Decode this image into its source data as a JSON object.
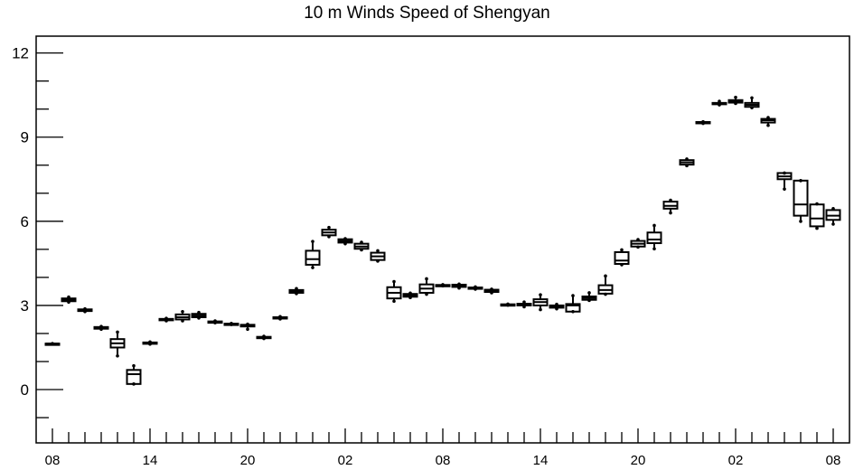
{
  "chart_data": {
    "type": "box",
    "title": "10 m Winds Speed of Shengyan",
    "xlabel": "",
    "ylabel": "",
    "ylim": [
      -1.9,
      12.6
    ],
    "y_ticks": [
      0,
      3,
      6,
      9,
      12
    ],
    "y_tick_labels": [
      "0",
      "3",
      "6",
      "9",
      "12"
    ],
    "x_ticks": [
      0,
      6,
      12,
      18,
      24,
      30,
      36,
      42,
      48
    ],
    "x_tick_labels": [
      "08",
      "14",
      "20",
      "02",
      "08",
      "14",
      "20",
      "02",
      "08"
    ],
    "xlim": [
      0,
      49
    ],
    "grid": false,
    "legend": "none",
    "boxes": [
      {
        "x": 0,
        "low": 1.64,
        "q1": 1.64,
        "median": 1.64,
        "q3": 1.64,
        "high": 1.64
      },
      {
        "x": 1,
        "low": 3.12,
        "q1": 3.15,
        "median": 3.2,
        "q3": 3.25,
        "high": 3.3
      },
      {
        "x": 2,
        "low": 2.78,
        "q1": 2.8,
        "median": 2.83,
        "q3": 2.86,
        "high": 2.88
      },
      {
        "x": 3,
        "low": 2.15,
        "q1": 2.17,
        "median": 2.2,
        "q3": 2.23,
        "high": 2.25
      },
      {
        "x": 4,
        "low": 1.2,
        "q1": 1.5,
        "median": 1.65,
        "q3": 1.8,
        "high": 2.05
      },
      {
        "x": 5,
        "low": 0.2,
        "q1": 0.2,
        "median": 0.55,
        "q3": 0.7,
        "high": 0.85
      },
      {
        "x": 6,
        "low": 1.62,
        "q1": 1.64,
        "median": 1.66,
        "q3": 1.68,
        "high": 1.7
      },
      {
        "x": 7,
        "low": 2.45,
        "q1": 2.47,
        "median": 2.5,
        "q3": 2.52,
        "high": 2.54
      },
      {
        "x": 8,
        "low": 2.45,
        "q1": 2.5,
        "median": 2.58,
        "q3": 2.68,
        "high": 2.78
      },
      {
        "x": 9,
        "low": 2.55,
        "q1": 2.58,
        "median": 2.64,
        "q3": 2.7,
        "high": 2.75
      },
      {
        "x": 10,
        "low": 2.38,
        "q1": 2.39,
        "median": 2.41,
        "q3": 2.43,
        "high": 2.45
      },
      {
        "x": 11,
        "low": 2.32,
        "q1": 2.33,
        "median": 2.34,
        "q3": 2.35,
        "high": 2.36
      },
      {
        "x": 12,
        "low": 2.15,
        "q1": 2.25,
        "median": 2.28,
        "q3": 2.31,
        "high": 2.33
      },
      {
        "x": 13,
        "low": 1.82,
        "q1": 1.84,
        "median": 1.86,
        "q3": 1.88,
        "high": 1.9
      },
      {
        "x": 14,
        "low": 2.52,
        "q1": 2.54,
        "median": 2.56,
        "q3": 2.58,
        "high": 2.6
      },
      {
        "x": 15,
        "low": 3.42,
        "q1": 3.45,
        "median": 3.5,
        "q3": 3.55,
        "high": 3.6
      },
      {
        "x": 16,
        "low": 4.35,
        "q1": 4.45,
        "median": 4.65,
        "q3": 4.95,
        "high": 5.28
      },
      {
        "x": 17,
        "low": 5.45,
        "q1": 5.5,
        "median": 5.6,
        "q3": 5.7,
        "high": 5.78
      },
      {
        "x": 18,
        "low": 5.2,
        "q1": 5.24,
        "median": 5.3,
        "q3": 5.36,
        "high": 5.38
      },
      {
        "x": 19,
        "low": 4.98,
        "q1": 5.02,
        "median": 5.1,
        "q3": 5.2,
        "high": 5.25
      },
      {
        "x": 20,
        "low": 4.58,
        "q1": 4.62,
        "median": 4.75,
        "q3": 4.88,
        "high": 4.95
      },
      {
        "x": 21,
        "low": 3.15,
        "q1": 3.25,
        "median": 3.45,
        "q3": 3.65,
        "high": 3.85
      },
      {
        "x": 22,
        "low": 3.28,
        "q1": 3.31,
        "median": 3.36,
        "q3": 3.41,
        "high": 3.44
      },
      {
        "x": 23,
        "low": 3.4,
        "q1": 3.45,
        "median": 3.6,
        "q3": 3.75,
        "high": 3.95
      },
      {
        "x": 24,
        "low": 3.7,
        "q1": 3.71,
        "median": 3.72,
        "q3": 3.73,
        "high": 3.74
      },
      {
        "x": 25,
        "low": 3.62,
        "q1": 3.66,
        "median": 3.7,
        "q3": 3.74,
        "high": 3.76
      },
      {
        "x": 26,
        "low": 3.58,
        "q1": 3.6,
        "median": 3.62,
        "q3": 3.64,
        "high": 3.66
      },
      {
        "x": 27,
        "low": 3.45,
        "q1": 3.48,
        "median": 3.52,
        "q3": 3.56,
        "high": 3.58
      },
      {
        "x": 28,
        "low": 3.01,
        "q1": 3.02,
        "median": 3.03,
        "q3": 3.04,
        "high": 3.05
      },
      {
        "x": 29,
        "low": 2.95,
        "q1": 3.0,
        "median": 3.03,
        "q3": 3.06,
        "high": 3.12
      },
      {
        "x": 30,
        "low": 2.85,
        "q1": 3.0,
        "median": 3.12,
        "q3": 3.22,
        "high": 3.38
      },
      {
        "x": 31,
        "low": 2.88,
        "q1": 2.92,
        "median": 2.96,
        "q3": 3.0,
        "high": 3.04
      },
      {
        "x": 32,
        "low": 2.78,
        "q1": 2.78,
        "median": 3.0,
        "q3": 3.05,
        "high": 3.35
      },
      {
        "x": 33,
        "low": 3.18,
        "q1": 3.2,
        "median": 3.26,
        "q3": 3.32,
        "high": 3.45
      },
      {
        "x": 34,
        "low": 3.4,
        "q1": 3.42,
        "median": 3.55,
        "q3": 3.72,
        "high": 4.05
      },
      {
        "x": 35,
        "low": 4.45,
        "q1": 4.48,
        "median": 4.6,
        "q3": 4.9,
        "high": 4.98
      },
      {
        "x": 36,
        "low": 5.08,
        "q1": 5.1,
        "median": 5.2,
        "q3": 5.3,
        "high": 5.35
      },
      {
        "x": 37,
        "low": 5.02,
        "q1": 5.22,
        "median": 5.35,
        "q3": 5.6,
        "high": 5.85
      },
      {
        "x": 38,
        "low": 6.3,
        "q1": 6.45,
        "median": 6.55,
        "q3": 6.7,
        "high": 6.75
      },
      {
        "x": 39,
        "low": 7.98,
        "q1": 8.02,
        "median": 8.1,
        "q3": 8.18,
        "high": 8.22
      },
      {
        "x": 40,
        "low": 9.49,
        "q1": 9.5,
        "median": 9.52,
        "q3": 9.54,
        "high": 9.55
      },
      {
        "x": 41,
        "low": 10.15,
        "q1": 10.18,
        "median": 10.2,
        "q3": 10.22,
        "high": 10.28
      },
      {
        "x": 42,
        "low": 10.2,
        "q1": 10.23,
        "median": 10.27,
        "q3": 10.32,
        "high": 10.42
      },
      {
        "x": 43,
        "low": 10.05,
        "q1": 10.08,
        "median": 10.15,
        "q3": 10.22,
        "high": 10.4
      },
      {
        "x": 44,
        "low": 9.42,
        "q1": 9.52,
        "median": 9.6,
        "q3": 9.65,
        "high": 9.7
      },
      {
        "x": 45,
        "low": 7.15,
        "q1": 7.5,
        "median": 7.6,
        "q3": 7.72,
        "high": 7.72
      },
      {
        "x": 46,
        "low": 6.0,
        "q1": 6.2,
        "median": 6.6,
        "q3": 7.45,
        "high": 7.45
      },
      {
        "x": 47,
        "low": 5.75,
        "q1": 5.82,
        "median": 6.1,
        "q3": 6.6,
        "high": 6.62
      },
      {
        "x": 48,
        "low": 5.9,
        "q1": 6.05,
        "median": 6.2,
        "q3": 6.4,
        "high": 6.45
      }
    ]
  }
}
